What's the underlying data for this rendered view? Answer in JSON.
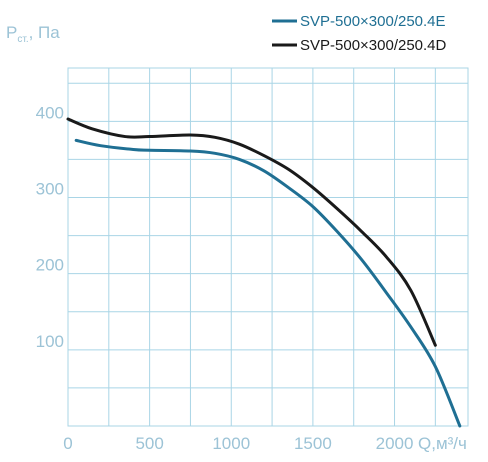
{
  "chart_data": {
    "type": "line",
    "title": "",
    "xlabel": "Q,м³/ч",
    "ylabel_main": "P",
    "ylabel_sub": "ст.",
    "ylabel_tail": ", Па",
    "xlim": [
      0,
      2450
    ],
    "ylim": [
      0,
      470
    ],
    "x_ticks": [
      0,
      500,
      1000,
      1500,
      2000
    ],
    "y_ticks": [
      100,
      200,
      300,
      400
    ],
    "grid": true,
    "legend_position": "top-right",
    "series": [
      {
        "name": "SVP-500×300/250.4E",
        "color": "#1f6f93",
        "x": [
          50,
          200,
          400,
          500,
          750,
          900,
          1050,
          1200,
          1350,
          1500,
          1650,
          1800,
          1950,
          2100,
          2250,
          2400
        ],
        "y": [
          375,
          368,
          363,
          362,
          361,
          358,
          350,
          335,
          313,
          288,
          255,
          218,
          175,
          130,
          78,
          0
        ]
      },
      {
        "name": "SVP-500×300/250.4D",
        "color": "#1a1a1a",
        "x": [
          0,
          150,
          350,
          500,
          750,
          900,
          1050,
          1200,
          1350,
          1500,
          1650,
          1800,
          1950,
          2100,
          2250
        ],
        "y": [
          403,
          390,
          380,
          380,
          382,
          379,
          370,
          355,
          337,
          313,
          285,
          255,
          222,
          178,
          106
        ]
      }
    ]
  }
}
